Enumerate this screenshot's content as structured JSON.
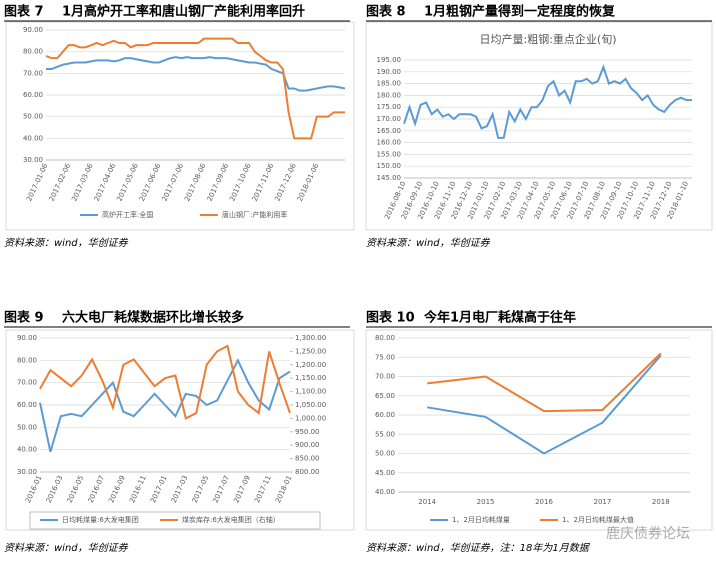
{
  "chart_data": [
    {
      "type": "line",
      "label": "图表 7",
      "title": "1月高炉开工率和唐山钢厂产能利用率回升",
      "source": "资料来源：wind，华创证券",
      "categories": [
        "2017-01-06",
        null,
        null,
        null,
        "2017-02-06",
        null,
        null,
        null,
        "2017-03-06",
        null,
        null,
        null,
        "2017-04-06",
        null,
        null,
        null,
        "2017-05-06",
        null,
        null,
        null,
        "2017-06-06",
        null,
        null,
        null,
        "2017-07-06",
        null,
        null,
        null,
        "2017-08-06",
        null,
        null,
        null,
        "2017-09-06",
        null,
        null,
        null,
        "2017-10-06",
        null,
        null,
        null,
        "2017-11-06",
        null,
        null,
        null,
        "2017-12-06",
        null,
        null,
        null,
        "2018-01-06",
        null,
        null,
        null,
        null,
        null
      ],
      "ylim": [
        30,
        90
      ],
      "yticks": [
        {
          "value": 30,
          "label": "30.00"
        },
        {
          "value": 40,
          "label": "40.00"
        },
        {
          "value": 50,
          "label": "50.00"
        },
        {
          "value": 60,
          "label": "60.00"
        },
        {
          "value": 70,
          "label": "70.00"
        },
        {
          "value": 80,
          "label": "80.00"
        },
        {
          "value": 90,
          "label": "90.00"
        }
      ],
      "series": [
        {
          "name": "高炉开工率:全国",
          "color": "#5b9bd5",
          "values": [
            72,
            72,
            73,
            74,
            74.5,
            75,
            75,
            75,
            75.5,
            76,
            76,
            76,
            75.5,
            76,
            77,
            77,
            76.5,
            76,
            75.5,
            75,
            75,
            76,
            77,
            77.5,
            77,
            77.5,
            77,
            77,
            77,
            77.5,
            77,
            77,
            77,
            76.5,
            76,
            75.5,
            75,
            75,
            74.5,
            74,
            72,
            71,
            70,
            63,
            63,
            62,
            62,
            62.5,
            63,
            63.5,
            64,
            64,
            63.5,
            63
          ]
        },
        {
          "name": "唐山钢厂:产能利用率",
          "color": "#ed7d31",
          "values": [
            78,
            77,
            77,
            80,
            83,
            83,
            82,
            82,
            83,
            84,
            83,
            84,
            85,
            84,
            84,
            82,
            83,
            83,
            83,
            84,
            84,
            84,
            84,
            84,
            84,
            84,
            84,
            84,
            86,
            86,
            86,
            86,
            86,
            86,
            84,
            84,
            84,
            80,
            78,
            76,
            75,
            75,
            72,
            52,
            40,
            40,
            40,
            40,
            50,
            50,
            50,
            52,
            52,
            52
          ]
        }
      ]
    },
    {
      "type": "line",
      "label": "图表 8",
      "title": "1月粗钢产量得到一定程度的恢复",
      "subtitle": "日均产量:粗钢:重点企业(旬)",
      "source": "资料来源：wind，华创证券",
      "categories": [
        "2016-08-10",
        null,
        null,
        "2016-09-10",
        null,
        null,
        "2016-10-10",
        null,
        null,
        "2016-11-10",
        null,
        null,
        "2016-12-10",
        null,
        null,
        "2017-01-10",
        null,
        null,
        "2017-02-10",
        null,
        null,
        "2017-03-10",
        null,
        null,
        "2017-04-10",
        null,
        null,
        "2017-05-10",
        null,
        null,
        "2017-06-10",
        null,
        null,
        "2017-07-10",
        null,
        null,
        "2017-08-10",
        null,
        null,
        "2017-09-10",
        null,
        null,
        "2017-10-10",
        null,
        null,
        "2017-11-10",
        null,
        null,
        "2017-12-10",
        null,
        null,
        "2018-01-10",
        null
      ],
      "ylim": [
        145,
        195
      ],
      "yticks": [
        {
          "value": 145,
          "label": "145.00"
        },
        {
          "value": 150,
          "label": "150.00"
        },
        {
          "value": 155,
          "label": "155.00"
        },
        {
          "value": 160,
          "label": "160.00"
        },
        {
          "value": 165,
          "label": "165.00"
        },
        {
          "value": 170,
          "label": "170.00"
        },
        {
          "value": 175,
          "label": "175.00"
        },
        {
          "value": 180,
          "label": "180.00"
        },
        {
          "value": 185,
          "label": "185.00"
        },
        {
          "value": 190,
          "label": "190.00"
        },
        {
          "value": 195,
          "label": "195.00"
        }
      ],
      "series": [
        {
          "name": "日均产量:粗钢:重点企业(旬)",
          "color": "#5b9bd5",
          "values": [
            168,
            175,
            168,
            176,
            177,
            172,
            174,
            171,
            172,
            170,
            172,
            172,
            172,
            171,
            166,
            167,
            172,
            162,
            162,
            173,
            169,
            174,
            170,
            175,
            175,
            178,
            184,
            186,
            180,
            182,
            177,
            186,
            186,
            187,
            185,
            186,
            192,
            185,
            186,
            185,
            187,
            183,
            181,
            178,
            180,
            176,
            174,
            173,
            176,
            178,
            179,
            178,
            178
          ]
        }
      ]
    },
    {
      "type": "line",
      "label": "图表 9",
      "title": "六大电厂耗煤数据环比增长较多",
      "source": "资料来源：wind，华创证券",
      "categories": [
        "2016-01",
        null,
        "2016-03",
        null,
        "2016-05",
        null,
        "2016-07",
        null,
        "2016-09",
        null,
        "2016-11",
        null,
        "2017-01",
        null,
        "2017-03",
        null,
        "2017-05",
        null,
        "2017-07",
        null,
        "2017-09",
        null,
        "2017-11",
        null,
        "2018-01"
      ],
      "ylim": [
        30,
        90
      ],
      "yticks": [
        {
          "value": 30,
          "label": "30.00"
        },
        {
          "value": 40,
          "label": "40.00"
        },
        {
          "value": 50,
          "label": "50.00"
        },
        {
          "value": 60,
          "label": "60.00"
        },
        {
          "value": 70,
          "label": "70.00"
        },
        {
          "value": 80,
          "label": "80.00"
        },
        {
          "value": 90,
          "label": "90.00"
        }
      ],
      "y2lim": [
        800,
        1300
      ],
      "y2ticks": [
        {
          "value": 800,
          "label": "800.00"
        },
        {
          "value": 850,
          "label": "850.00"
        },
        {
          "value": 900,
          "label": "900.00"
        },
        {
          "value": 950,
          "label": "950.00"
        },
        {
          "value": 1000,
          "label": "1,000.00"
        },
        {
          "value": 1050,
          "label": "1,050.00"
        },
        {
          "value": 1100,
          "label": "1,100.00"
        },
        {
          "value": 1150,
          "label": "1,150.00"
        },
        {
          "value": 1200,
          "label": "1,200.00"
        },
        {
          "value": 1250,
          "label": "1,250.00"
        },
        {
          "value": 1300,
          "label": "1,300.00"
        }
      ],
      "series": [
        {
          "name": "日均耗煤量:6大发电集团",
          "color": "#5b9bd5",
          "values": [
            61,
            39,
            55,
            56,
            55,
            60,
            65,
            70,
            57,
            55,
            60,
            65,
            60,
            55,
            65,
            64,
            60,
            62,
            71,
            80,
            70,
            62,
            58,
            72,
            75
          ]
        },
        {
          "name": "煤炭库存:6大发电集团（右轴）",
          "color": "#ed7d31",
          "axis": "y2",
          "values": [
            1110,
            1180,
            1150,
            1120,
            1160,
            1220,
            1140,
            1040,
            1200,
            1220,
            1170,
            1120,
            1150,
            1160,
            1000,
            1020,
            1200,
            1250,
            1270,
            1100,
            1050,
            1020,
            1250,
            1130,
            1020
          ]
        }
      ]
    },
    {
      "type": "line",
      "label": "图表 10",
      "title": "今年1月电厂耗煤高于往年",
      "source": "资料来源：wind，华创证券，注：18年为1月数据",
      "watermark": "鹿庆债券论坛",
      "categories": [
        "2014",
        "2015",
        "2016",
        "2017",
        "2018"
      ],
      "ylim": [
        40,
        80
      ],
      "yticks": [
        {
          "value": 40,
          "label": "40.00"
        },
        {
          "value": 45,
          "label": "45.00"
        },
        {
          "value": 50,
          "label": "50.00"
        },
        {
          "value": 55,
          "label": "55.00"
        },
        {
          "value": 60,
          "label": "60.00"
        },
        {
          "value": 65,
          "label": "65.00"
        },
        {
          "value": 70,
          "label": "70.00"
        },
        {
          "value": 75,
          "label": "75.00"
        },
        {
          "value": 80,
          "label": "80.00"
        }
      ],
      "series": [
        {
          "name": "1、2月日均耗煤量",
          "color": "#5b9bd5",
          "values": [
            62,
            59.5,
            50,
            58,
            75.5
          ]
        },
        {
          "name": "1、2月日均耗煤最大值",
          "color": "#ed7d31",
          "values": [
            68.2,
            70,
            61,
            61.3,
            76
          ]
        }
      ]
    }
  ]
}
